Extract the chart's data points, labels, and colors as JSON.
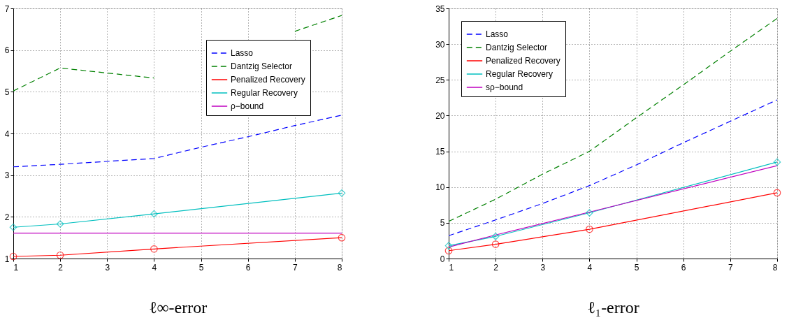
{
  "chart_data": [
    {
      "type": "line",
      "xlabel": "ℓ∞-error",
      "xlim": [
        1,
        8
      ],
      "xticks": [
        1,
        2,
        3,
        4,
        5,
        6,
        7,
        8
      ],
      "ylim": [
        1,
        7
      ],
      "yticks": [
        1,
        2,
        3,
        4,
        5,
        6,
        7
      ],
      "grid": true,
      "legend": "top right",
      "series": [
        {
          "name": "Lasso",
          "color": "#0000ff",
          "line_style": "dashed",
          "marker": "none",
          "x": [
            1,
            2,
            3,
            4,
            5,
            6,
            7,
            8
          ],
          "values": [
            3.2,
            3.26,
            3.33,
            3.4,
            3.67,
            3.92,
            4.19,
            4.44
          ]
        },
        {
          "name": "Dantzig Selector",
          "color": "#008000",
          "line_style": "dashed",
          "marker": "none",
          "x": [
            1,
            2,
            3,
            4,
            5,
            6,
            7,
            8
          ],
          "values": [
            5.02,
            5.57,
            5.45,
            5.33,
            null,
            null,
            6.45,
            6.83
          ]
        },
        {
          "name": "Penalized Recovery",
          "color": "#ff0000",
          "line_style": "solid",
          "marker": "circle",
          "x": [
            1,
            2,
            4,
            8
          ],
          "values": [
            1.05,
            1.08,
            1.23,
            1.5
          ]
        },
        {
          "name": "Regular Recovery",
          "color": "#00bfbf",
          "line_style": "solid",
          "marker": "diamond",
          "x": [
            1,
            2,
            4,
            8
          ],
          "values": [
            1.75,
            1.83,
            2.07,
            2.57
          ]
        },
        {
          "name": "ρ−bound",
          "color": "#bf00bf",
          "line_style": "solid",
          "marker": "none",
          "x": [
            1,
            8
          ],
          "values": [
            1.61,
            1.61
          ]
        }
      ]
    },
    {
      "type": "line",
      "xlabel": "ℓ₁-error",
      "xlim": [
        1,
        8
      ],
      "xticks": [
        1,
        2,
        3,
        4,
        5,
        6,
        7,
        8
      ],
      "ylim": [
        0,
        35
      ],
      "yticks": [
        0,
        5,
        10,
        15,
        20,
        25,
        30,
        35
      ],
      "grid": true,
      "legend": "top left",
      "series": [
        {
          "name": "Lasso",
          "color": "#0000ff",
          "line_style": "dashed",
          "marker": "none",
          "x": [
            1,
            2,
            3,
            4,
            5,
            6,
            7,
            8
          ],
          "values": [
            3.2,
            5.4,
            7.7,
            10.2,
            13.1,
            16.2,
            19.2,
            22.2
          ]
        },
        {
          "name": "Dantzig Selector",
          "color": "#008000",
          "line_style": "dashed",
          "marker": "none",
          "x": [
            1,
            2,
            3,
            4,
            5,
            6,
            7,
            8
          ],
          "values": [
            5.2,
            8.3,
            11.8,
            15.0,
            19.7,
            24.3,
            29.0,
            33.6
          ]
        },
        {
          "name": "Penalized Recovery",
          "color": "#ff0000",
          "line_style": "solid",
          "marker": "circle",
          "x": [
            1,
            2,
            4,
            8
          ],
          "values": [
            1.1,
            2.0,
            4.1,
            9.2
          ]
        },
        {
          "name": "Regular Recovery",
          "color": "#00bfbf",
          "line_style": "solid",
          "marker": "diamond",
          "x": [
            1,
            2,
            4,
            8
          ],
          "values": [
            1.8,
            3.1,
            6.4,
            13.5
          ]
        },
        {
          "name": "sρ−bound",
          "color": "#bf00bf",
          "line_style": "solid",
          "marker": "none",
          "x": [
            1,
            2,
            4,
            8
          ],
          "values": [
            1.6,
            3.3,
            6.5,
            13.0
          ]
        }
      ]
    }
  ]
}
